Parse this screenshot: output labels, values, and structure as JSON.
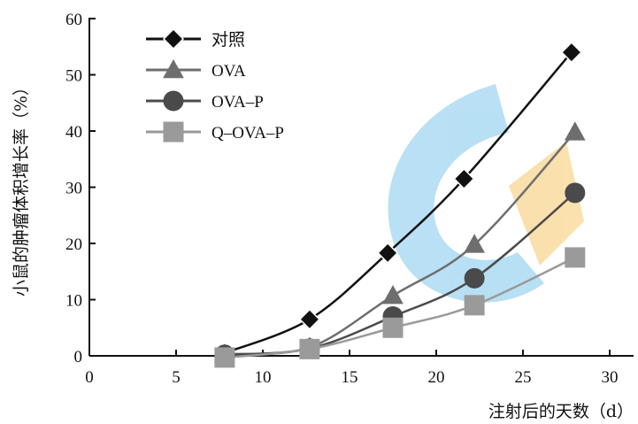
{
  "chart_data": {
    "type": "line",
    "title": "",
    "xlabel": "注射后的天数（d）",
    "ylabel": "小鼠的肿瘤体积增长率（%）",
    "xlim": [
      0,
      30
    ],
    "ylim": [
      0,
      60
    ],
    "xticks": [
      0,
      5,
      10,
      15,
      20,
      25,
      30
    ],
    "yticks": [
      0,
      10,
      20,
      30,
      40,
      50,
      60
    ],
    "grid": false,
    "legend_position": "top-left",
    "series": [
      {
        "name": "对照",
        "marker": "diamond",
        "color": "#111111",
        "points": [
          [
            7.8,
            0.5
          ],
          [
            12.7,
            6.5
          ],
          [
            17.2,
            18.3
          ],
          [
            21.6,
            31.5
          ],
          [
            27.8,
            54.0
          ]
        ]
      },
      {
        "name": "OVA",
        "marker": "triangle",
        "color": "#6e6e6e",
        "points": [
          [
            7.8,
            0.3
          ],
          [
            12.7,
            1.5
          ],
          [
            17.5,
            10.7
          ],
          [
            22.2,
            19.8
          ],
          [
            28.0,
            39.8
          ]
        ]
      },
      {
        "name": "OVA–P",
        "marker": "circle",
        "color": "#4a4a4a",
        "points": [
          [
            7.8,
            0.2
          ],
          [
            12.7,
            1.3
          ],
          [
            17.5,
            7.0
          ],
          [
            22.2,
            13.8
          ],
          [
            28.0,
            29.0
          ]
        ]
      },
      {
        "name": "Q–OVA–P",
        "marker": "square",
        "color": "#9a9a9a",
        "points": [
          [
            7.8,
            -0.3
          ],
          [
            12.7,
            1.2
          ],
          [
            17.5,
            5.0
          ],
          [
            22.2,
            9.0
          ],
          [
            28.0,
            17.5
          ]
        ]
      }
    ]
  }
}
